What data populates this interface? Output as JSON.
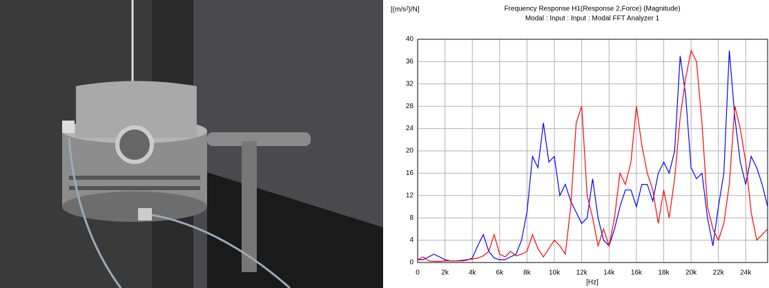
{
  "chart_data": {
    "type": "line",
    "title": "Frequency Response H1(Response 2,Force) (Magnitude)",
    "subtitle": "Modal : Input : Input : Modal FFT Analyzer 1",
    "y_label": "[(m/s²)/N]",
    "x_label": "[Hz]",
    "x": [
      0,
      400,
      800,
      1200,
      1600,
      2000,
      2400,
      2800,
      3200,
      3600,
      4000,
      4400,
      4800,
      5200,
      5600,
      6000,
      6400,
      6800,
      7200,
      7600,
      8000,
      8400,
      8800,
      9200,
      9600,
      10000,
      10400,
      10800,
      11200,
      11600,
      12000,
      12400,
      12800,
      13200,
      13600,
      14000,
      14400,
      14800,
      15200,
      15600,
      16000,
      16400,
      16800,
      17200,
      17600,
      18000,
      18400,
      18800,
      19200,
      19600,
      20000,
      20400,
      20800,
      21200,
      21600,
      22000,
      22400,
      22800,
      23200,
      23600,
      24000,
      24400,
      24800,
      25200,
      25600
    ],
    "series": [
      {
        "color": "#0000ff",
        "values": [
          0.5,
          0.5,
          1,
          1.5,
          1,
          0.5,
          0.3,
          0.3,
          0.3,
          0.4,
          0.8,
          3,
          5,
          2,
          0.8,
          0.5,
          0.5,
          1,
          1.5,
          4,
          9,
          19,
          17,
          25,
          18,
          19,
          12,
          14,
          11,
          9,
          7,
          8,
          15,
          8,
          4,
          3,
          6,
          10,
          13,
          13,
          10,
          14,
          14,
          11,
          16,
          18,
          16,
          20,
          37,
          30,
          17,
          15,
          16,
          8,
          3,
          10,
          16,
          38,
          26,
          18,
          14,
          19,
          17,
          14,
          10
        ]
      },
      {
        "color": "#ff0000",
        "values": [
          0.5,
          1,
          0.3,
          0.2,
          0.2,
          0.3,
          0.3,
          0.3,
          0.4,
          0.5,
          0.6,
          0.8,
          1.2,
          2,
          5,
          1.5,
          1,
          2,
          1.2,
          1.5,
          2,
          5,
          2.5,
          1,
          2.5,
          4,
          3,
          1.5,
          10,
          25,
          28,
          12,
          8,
          3,
          6,
          3,
          8,
          16,
          14,
          18,
          28,
          21,
          16,
          13,
          7,
          13,
          8,
          15,
          26,
          33,
          38,
          36,
          25,
          10,
          6,
          4,
          7,
          14,
          28,
          24,
          18,
          9,
          4,
          5,
          6
        ]
      }
    ],
    "xlim": [
      0,
      25600
    ],
    "xticks": [
      0,
      {
        "value": 2000,
        "label": "2k"
      },
      {
        "value": 4000,
        "label": "4k"
      },
      {
        "value": 6000,
        "label": "6k"
      },
      {
        "value": 8000,
        "label": "8k"
      },
      {
        "value": 10000,
        "label": "10k"
      },
      {
        "value": 12000,
        "label": "12k"
      },
      {
        "value": 14000,
        "label": "14k"
      },
      {
        "value": 16000,
        "label": "16k"
      },
      {
        "value": 18000,
        "label": "18k"
      },
      {
        "value": 20000,
        "label": "20k"
      },
      {
        "value": 22000,
        "label": "22k"
      },
      {
        "value": 24000,
        "label": "24k"
      }
    ],
    "ylim": [
      0,
      40
    ],
    "yticks": [
      0,
      4,
      8,
      12,
      16,
      20,
      24,
      28,
      32,
      36,
      40
    ],
    "grid": true
  }
}
